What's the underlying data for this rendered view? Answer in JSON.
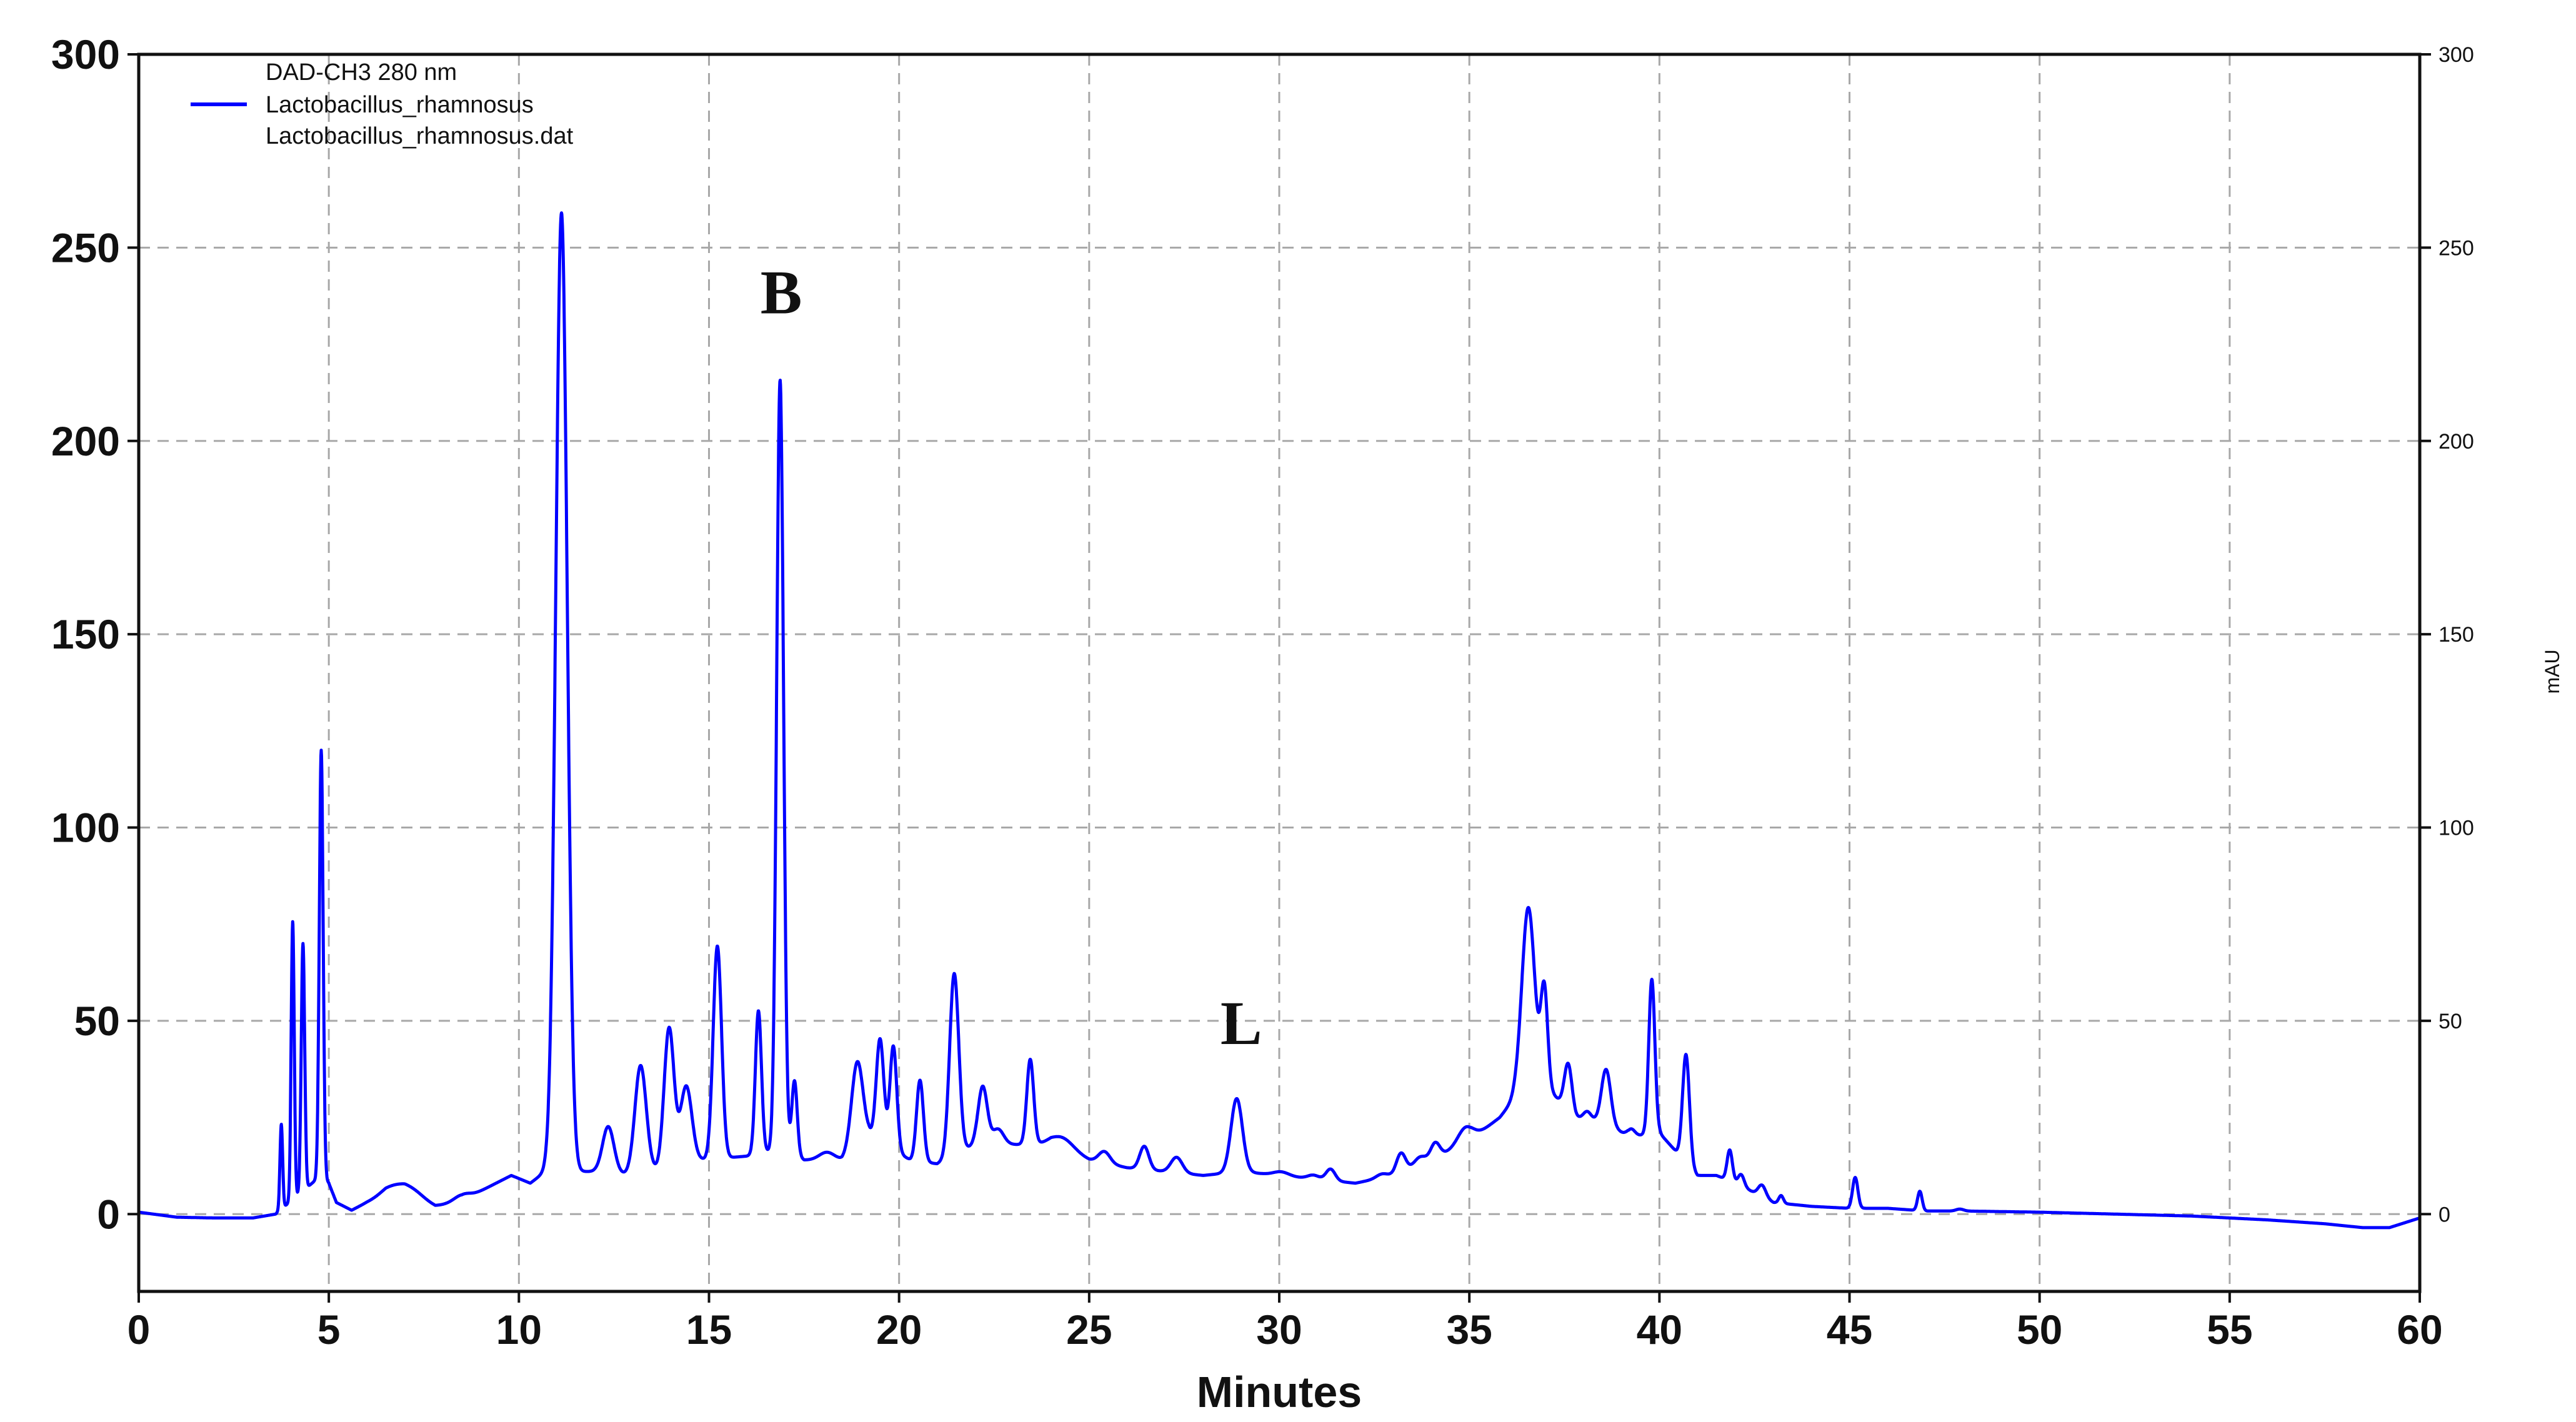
{
  "chart_data": {
    "type": "line",
    "xlabel": "Minutes",
    "ylabel_right": "mAU",
    "xlim": [
      0,
      60
    ],
    "ylim": [
      -20,
      300
    ],
    "grid": true,
    "legend_position": "top-left",
    "x_ticks": [
      0,
      5,
      10,
      15,
      20,
      25,
      30,
      35,
      40,
      45,
      50,
      55,
      60
    ],
    "y_ticks": [
      0,
      50,
      100,
      150,
      200,
      250,
      300
    ],
    "legend": {
      "header": "DAD-CH3  280 nm",
      "series_label": "Lactobacillus_rhamnosus",
      "file_label": "Lactobacillus_rhamnosus.dat"
    },
    "series": [
      {
        "name": "Lactobacillus_rhamnosus",
        "color": "#0000ff",
        "baseline": [
          [
            0,
            0.5
          ],
          [
            1,
            -0.8
          ],
          [
            2,
            -1
          ],
          [
            3,
            -1
          ],
          [
            3.6,
            0
          ],
          [
            4.8,
            10
          ],
          [
            5,
            8
          ],
          [
            5.2,
            3
          ],
          [
            5.6,
            1
          ],
          [
            6,
            3
          ],
          [
            6.5,
            5
          ],
          [
            7,
            5
          ],
          [
            7.8,
            2
          ],
          [
            8.5,
            3.5
          ],
          [
            9.2,
            7
          ],
          [
            9.8,
            10
          ],
          [
            10.3,
            8
          ],
          [
            10.7,
            11
          ],
          [
            11.6,
            11
          ],
          [
            12,
            11
          ],
          [
            13,
            10
          ],
          [
            14.8,
            14
          ],
          [
            16,
            15
          ],
          [
            17,
            17
          ],
          [
            17.5,
            14
          ],
          [
            18.5,
            14
          ],
          [
            19.2,
            20
          ],
          [
            20.3,
            14
          ],
          [
            21,
            13
          ],
          [
            22,
            18
          ],
          [
            23,
            18
          ],
          [
            24,
            18
          ],
          [
            25,
            14
          ],
          [
            26,
            12
          ],
          [
            27,
            11
          ],
          [
            28,
            10
          ],
          [
            29,
            11
          ],
          [
            30,
            10
          ],
          [
            31,
            9
          ],
          [
            32,
            8
          ],
          [
            33,
            10
          ],
          [
            34,
            14
          ],
          [
            35,
            19
          ],
          [
            35.8,
            25
          ],
          [
            36.2,
            30
          ],
          [
            37,
            33
          ],
          [
            37.8,
            25
          ],
          [
            38.5,
            24
          ],
          [
            39.2,
            20
          ],
          [
            40,
            21
          ],
          [
            41,
            10
          ],
          [
            41.5,
            10
          ],
          [
            42,
            8
          ],
          [
            43,
            3
          ],
          [
            44,
            2
          ],
          [
            45,
            1.5
          ],
          [
            46,
            1.5
          ],
          [
            47,
            0.8
          ],
          [
            48,
            0.8
          ],
          [
            50,
            0.5
          ],
          [
            52,
            0
          ],
          [
            54,
            -0.5
          ],
          [
            56,
            -1.5
          ],
          [
            57.5,
            -2.5
          ],
          [
            58.5,
            -3.5
          ],
          [
            59.2,
            -3.5
          ],
          [
            60,
            -1
          ]
        ],
        "peaks": [
          [
            3.75,
            22,
            0.035
          ],
          [
            4.05,
            72,
            0.04
          ],
          [
            4.32,
            64,
            0.045
          ],
          [
            4.8,
            110,
            0.05
          ],
          [
            6.7,
            2,
            0.3
          ],
          [
            7.2,
            2,
            0.3
          ],
          [
            8.5,
            1.5,
            0.2
          ],
          [
            11.12,
            248,
            0.15
          ],
          [
            12.35,
            12,
            0.15
          ],
          [
            13.2,
            28,
            0.15
          ],
          [
            13.95,
            36,
            0.13
          ],
          [
            14.4,
            20,
            0.15
          ],
          [
            15.22,
            55,
            0.11
          ],
          [
            16.3,
            37,
            0.08
          ],
          [
            16.87,
            199,
            0.09
          ],
          [
            17.25,
            19,
            0.07
          ],
          [
            18.1,
            2,
            0.2
          ],
          [
            18.9,
            22,
            0.15
          ],
          [
            19.5,
            27,
            0.1
          ],
          [
            19.85,
            27,
            0.09
          ],
          [
            20.55,
            21,
            0.09
          ],
          [
            21.45,
            47,
            0.12
          ],
          [
            22.2,
            15,
            0.12
          ],
          [
            22.6,
            4,
            0.15
          ],
          [
            23.45,
            22,
            0.09
          ],
          [
            24.3,
            3,
            0.3
          ],
          [
            25.4,
            3,
            0.15
          ],
          [
            26.45,
            6,
            0.12
          ],
          [
            27.3,
            4,
            0.15
          ],
          [
            28.88,
            19,
            0.15
          ],
          [
            30.05,
            1,
            0.2
          ],
          [
            30.9,
            1,
            0.15
          ],
          [
            31.35,
            3,
            0.12
          ],
          [
            32.7,
            1,
            0.15
          ],
          [
            33.2,
            5,
            0.12
          ],
          [
            33.7,
            2,
            0.15
          ],
          [
            34.1,
            4,
            0.12
          ],
          [
            34.9,
            4,
            0.2
          ],
          [
            36.55,
            48,
            0.17
          ],
          [
            36.97,
            25,
            0.09
          ],
          [
            37.6,
            12,
            0.1
          ],
          [
            38.1,
            2,
            0.1
          ],
          [
            38.6,
            14,
            0.12
          ],
          [
            39.25,
            2,
            0.1
          ],
          [
            39.8,
            40,
            0.08
          ],
          [
            40.7,
            28,
            0.09
          ],
          [
            41.85,
            8,
            0.07
          ],
          [
            42.15,
            3,
            0.08
          ],
          [
            42.7,
            3,
            0.1
          ],
          [
            43.2,
            2,
            0.06
          ],
          [
            45.15,
            8,
            0.07
          ],
          [
            46.85,
            5,
            0.06
          ],
          [
            47.9,
            0.5,
            0.1
          ]
        ]
      }
    ],
    "annotations": [
      {
        "text": "B",
        "x": 16.9,
        "y": 233
      },
      {
        "text": "L",
        "x": 29.0,
        "y": 44
      }
    ]
  }
}
